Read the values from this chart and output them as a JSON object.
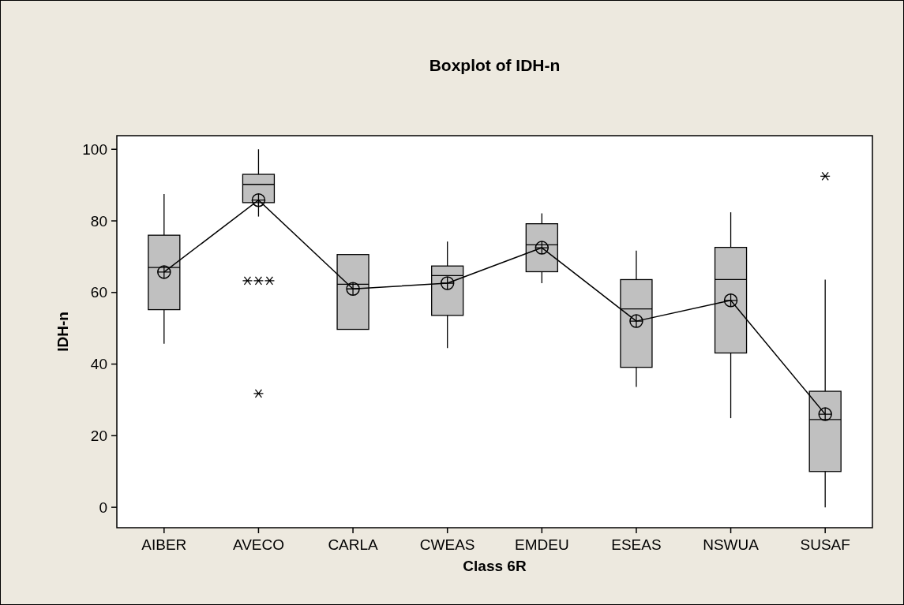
{
  "chart_data": {
    "type": "box",
    "title": "Boxplot of IDH-n",
    "xlabel": "Class 6R",
    "ylabel": "IDH-n",
    "categories": [
      "AIBER",
      "AVECO",
      "CARLA",
      "CWEAS",
      "EMDEU",
      "ESEAS",
      "NSWUA",
      "SUSAF"
    ],
    "boxes": [
      {
        "low": 45.7,
        "q1": 55.2,
        "median": 67,
        "q3": 76,
        "high": 87.5
      },
      {
        "low": 81.2,
        "q1": 85.1,
        "median": 90.2,
        "q3": 93,
        "high": 100,
        "outliers": [
          63.3,
          63.3,
          63.3,
          31.8
        ]
      },
      {
        "low": 49.7,
        "q1": 49.7,
        "median": 62.3,
        "q3": 70.6,
        "high": 70.6
      },
      {
        "low": 44.5,
        "q1": 53.6,
        "median": 64.7,
        "q3": 67.4,
        "high": 74.2
      },
      {
        "low": 62.6,
        "q1": 65.8,
        "median": 73.3,
        "q3": 79.2,
        "high": 82.1
      },
      {
        "low": 33.6,
        "q1": 39.1,
        "median": 55.4,
        "q3": 63.6,
        "high": 71.7
      },
      {
        "low": 24.9,
        "q1": 43.1,
        "median": 63.6,
        "q3": 72.6,
        "high": 82.4
      },
      {
        "low": 0,
        "q1": 10,
        "median": 24.5,
        "q3": 32.4,
        "high": 63.6,
        "outliers": [
          92.5
        ]
      }
    ],
    "color": "#c0c0c0",
    "series": [
      {
        "type": "line",
        "color": "#000000",
        "marker": "circle",
        "values": [
          65.7,
          85.8,
          61,
          62.6,
          72.5,
          52,
          57.8,
          26
        ]
      }
    ],
    "ylim": [
      -5.7,
      103.8
    ],
    "yticks": [
      0,
      20,
      40,
      60,
      80,
      100
    ],
    "grid": false
  }
}
